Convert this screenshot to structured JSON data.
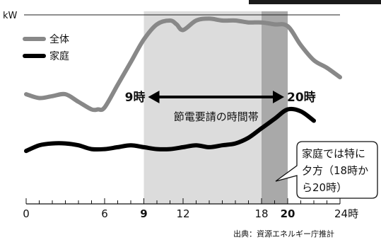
{
  "chart_data": {
    "type": "line",
    "ylabel": "kW",
    "xlim": [
      0,
      24
    ],
    "x_ticks": [
      0,
      6,
      9,
      12,
      18,
      20,
      24
    ],
    "x_tick_labels": [
      "0",
      "6",
      "9",
      "12",
      "18",
      "20",
      "24時"
    ],
    "bold_ticks": [
      9,
      20
    ],
    "series": [
      {
        "name": "全体",
        "color": "#888888",
        "x": [
          0,
          1,
          2,
          3,
          4,
          5,
          5.5,
          6,
          7,
          8,
          9,
          10,
          11,
          11.5,
          12,
          13,
          14,
          15,
          16,
          17,
          18,
          19,
          20,
          21,
          22,
          23,
          24
        ],
        "y": [
          0.58,
          0.56,
          0.57,
          0.58,
          0.54,
          0.5,
          0.5,
          0.51,
          0.63,
          0.75,
          0.87,
          0.95,
          0.97,
          0.95,
          0.92,
          0.97,
          0.98,
          0.97,
          0.97,
          0.96,
          0.96,
          0.95,
          0.94,
          0.84,
          0.76,
          0.72,
          0.67
        ]
      },
      {
        "name": "家庭",
        "color": "#000000",
        "x": [
          0,
          1,
          2,
          3,
          4,
          5,
          6,
          7,
          8,
          9,
          10,
          11,
          12,
          13,
          14,
          15,
          16,
          17,
          18,
          19,
          20,
          21,
          22
        ],
        "y": [
          0.28,
          0.31,
          0.32,
          0.32,
          0.31,
          0.29,
          0.29,
          0.3,
          0.31,
          0.3,
          0.29,
          0.29,
          0.3,
          0.31,
          0.3,
          0.31,
          0.32,
          0.35,
          0.4,
          0.45,
          0.5,
          0.49,
          0.44
        ]
      }
    ],
    "highlight_bands": [
      {
        "from": 9,
        "to": 18,
        "color": "#dcdcdc"
      },
      {
        "from": 18,
        "to": 20,
        "color": "#a9a9a9"
      }
    ],
    "annotations": {
      "start_label": "9時",
      "end_label": "20時",
      "center_label": "節電要請の時間帯",
      "callout_lines": [
        "家庭では特に",
        "夕方（18時か",
        "ら20時）"
      ]
    },
    "legend_position": "top-left",
    "source": "出典：資源エネルギー庁推計"
  }
}
